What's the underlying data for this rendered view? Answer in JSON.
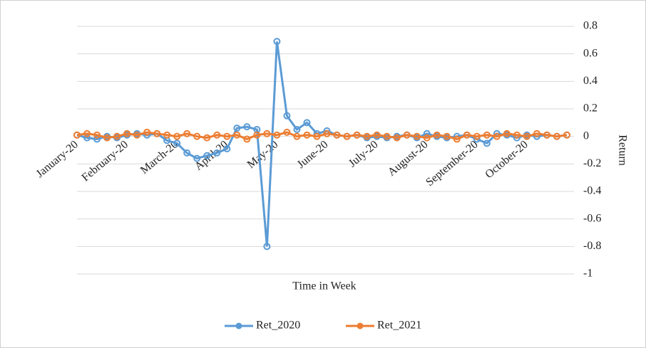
{
  "chart_data": {
    "type": "line",
    "x_label": "Time in Week",
    "y_label": "Return",
    "categories": [
      "January-20",
      null,
      null,
      null,
      null,
      "February-20",
      null,
      null,
      null,
      null,
      "March-20",
      null,
      null,
      null,
      null,
      "April-20",
      null,
      null,
      null,
      null,
      "May-20",
      null,
      null,
      null,
      null,
      "June-20",
      null,
      null,
      null,
      null,
      "July-20",
      null,
      null,
      null,
      null,
      "August-20",
      null,
      null,
      null,
      null,
      "September-20",
      null,
      null,
      null,
      null,
      "October-20",
      null,
      null,
      null,
      null
    ],
    "series": [
      {
        "name": "Ret_2020",
        "color": "#5b9bd5",
        "values": [
          0.01,
          -0.01,
          -0.02,
          0.0,
          -0.01,
          0.01,
          0.02,
          0.01,
          0.02,
          -0.03,
          -0.05,
          -0.12,
          -0.16,
          -0.14,
          -0.12,
          -0.09,
          0.06,
          0.07,
          0.05,
          -0.8,
          0.69,
          0.15,
          0.05,
          0.1,
          0.02,
          0.04,
          0.01,
          0.0,
          0.01,
          -0.01,
          0.0,
          -0.01,
          0.0,
          0.01,
          -0.01,
          0.02,
          0.0,
          -0.01,
          0.0,
          0.01,
          -0.02,
          -0.05,
          0.02,
          0.01,
          -0.01,
          0.01,
          0.0,
          0.01,
          0.0,
          0.01
        ]
      },
      {
        "name": "Ret_2021",
        "color": "#ed7d31",
        "values": [
          0.01,
          0.02,
          0.01,
          -0.01,
          0.0,
          0.02,
          0.01,
          0.03,
          0.02,
          0.01,
          0.0,
          0.02,
          0.0,
          -0.01,
          0.01,
          0.0,
          0.01,
          -0.02,
          0.01,
          0.02,
          0.01,
          0.03,
          0.0,
          0.01,
          0.0,
          0.02,
          0.01,
          0.0,
          0.01,
          0.0,
          0.01,
          0.0,
          -0.01,
          0.01,
          0.0,
          -0.01,
          0.01,
          0.0,
          -0.02,
          0.01,
          0.0,
          0.01,
          0.0,
          0.02,
          0.01,
          0.0,
          0.02,
          0.01,
          0.0,
          0.01
        ]
      }
    ],
    "ylim": [
      -1,
      0.8
    ],
    "yticks": [
      -1,
      -0.8,
      -0.6,
      -0.4,
      -0.2,
      0,
      0.2,
      0.4,
      0.6,
      0.8
    ],
    "grid": true,
    "legend": "bottom"
  }
}
